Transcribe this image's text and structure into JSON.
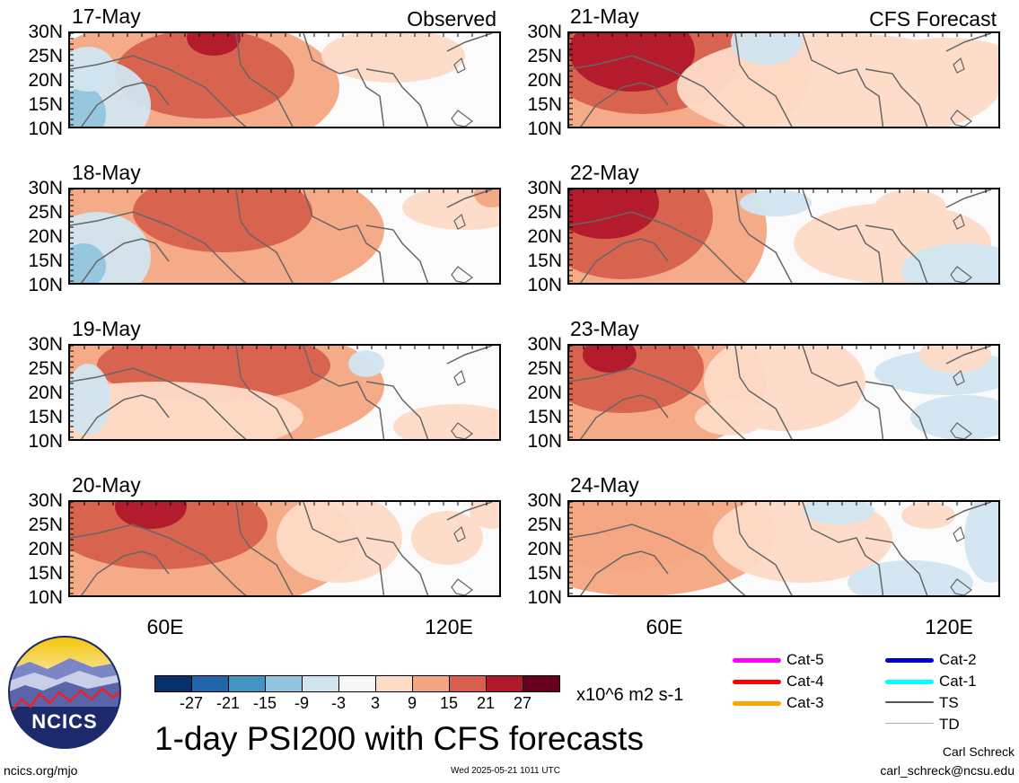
{
  "left_column_label": "Observed",
  "right_column_label": "CFS Forecast",
  "panels": [
    {
      "date": "17-May"
    },
    {
      "date": "18-May"
    },
    {
      "date": "19-May"
    },
    {
      "date": "20-May"
    },
    {
      "date": "21-May"
    },
    {
      "date": "22-May"
    },
    {
      "date": "23-May"
    },
    {
      "date": "24-May"
    }
  ],
  "lat_labels": [
    "30N",
    "25N",
    "20N",
    "15N",
    "10N"
  ],
  "lon_labels": [
    "60E",
    "120E"
  ],
  "colorbar": {
    "ticks": [
      "-27",
      "-21",
      "-15",
      "-9",
      "-3",
      "3",
      "9",
      "15",
      "21",
      "27"
    ],
    "colors": [
      "#08306b",
      "#2166ac",
      "#4393c3",
      "#92c5de",
      "#d1e5f0",
      "#f7f7f7",
      "#fddbc7",
      "#f4a582",
      "#d6604d",
      "#b2182b",
      "#67001f"
    ],
    "units": "x10^6 m2 s-1"
  },
  "title": "1-day PSI200 with CFS forecasts",
  "legend": [
    {
      "label": "Cat-5",
      "color": "#ff00ff"
    },
    {
      "label": "Cat-4",
      "color": "#ff0000"
    },
    {
      "label": "Cat-3",
      "color": "#ffa500"
    },
    {
      "label": "Cat-2",
      "color": "#0000cc"
    },
    {
      "label": "Cat-1",
      "color": "#00ffff"
    },
    {
      "label": "TS",
      "color": "#555555"
    },
    {
      "label": "TD",
      "color": "#aaaaaa"
    }
  ],
  "logo_text": "NCICS",
  "footer": {
    "website": "ncics.org/mjo",
    "timestamp": "Wed 2025-05-21 1011 UTC",
    "author": "Carl Schreck",
    "email": "carl_schreck@ncsu.edu"
  }
}
